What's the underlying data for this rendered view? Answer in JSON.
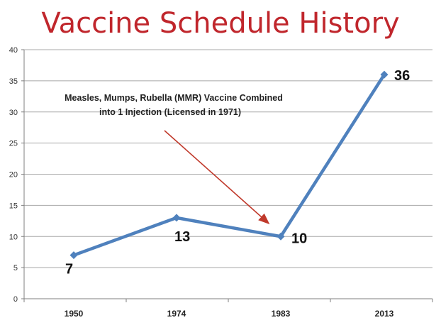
{
  "chart_data": {
    "type": "line",
    "title": "Vaccine Schedule History",
    "xlabel": "",
    "ylabel": "",
    "categories": [
      "1950",
      "1974",
      "1983",
      "2013"
    ],
    "series": [
      {
        "values": [
          7,
          13,
          10,
          36
        ],
        "color": "#4f81bd"
      }
    ],
    "data_labels": [
      "7",
      "13",
      "10",
      "36"
    ],
    "ylim": [
      0,
      40
    ],
    "yticks": [
      "0",
      "5",
      "10",
      "15",
      "20",
      "25",
      "30",
      "35",
      "40"
    ],
    "grid": true,
    "legend": "none",
    "annotation": {
      "lines": [
        "Measles, Mumps, Rubella (MMR) Vaccine Combined",
        "into 1 Injection (Licensed in 1971)"
      ],
      "arrow_color": "#c0392b",
      "points_to": "1983"
    }
  }
}
